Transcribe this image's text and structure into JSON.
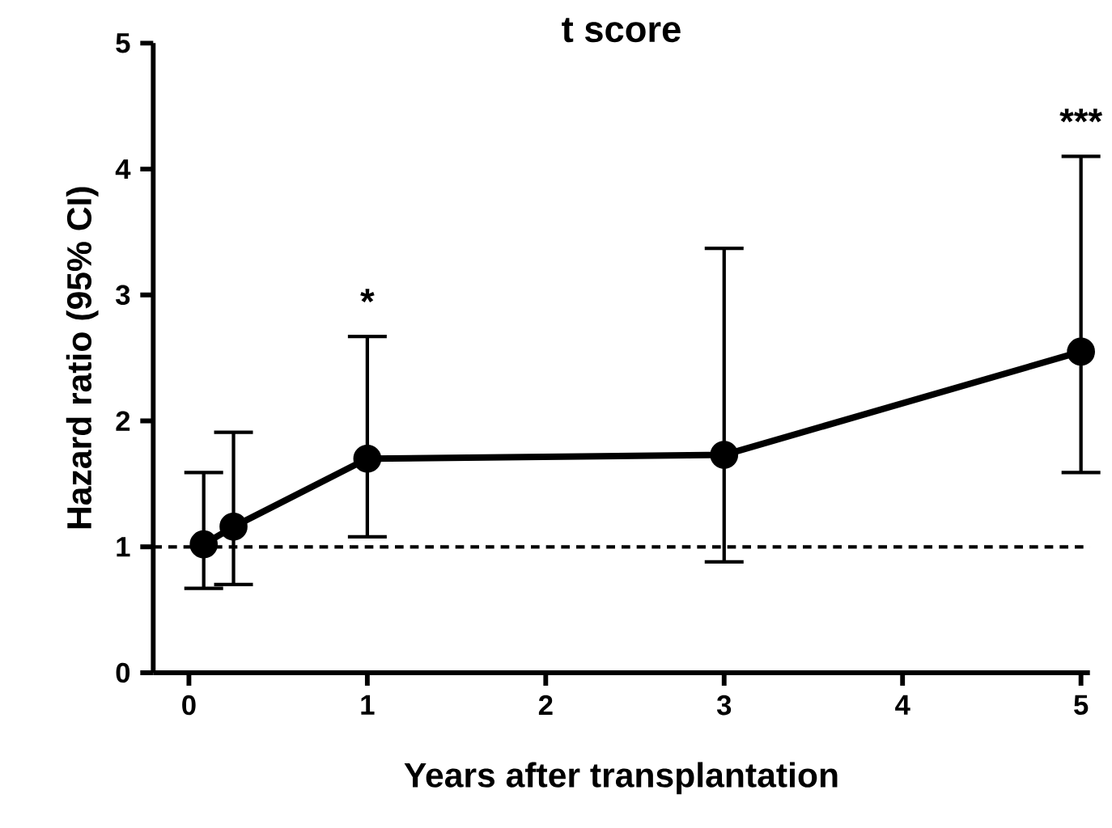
{
  "chart_data": {
    "type": "line",
    "title": "t score",
    "xlabel": "Years after transplantation",
    "ylabel": "Hazard ratio (95% CI)",
    "x": [
      0.083,
      0.25,
      1,
      3,
      5
    ],
    "series": [
      {
        "color": "#000000",
        "values": [
          1.02,
          1.16,
          1.7,
          1.73,
          2.55
        ],
        "errors": [
          [
            0.67,
            1.59
          ],
          [
            0.7,
            1.91
          ],
          [
            1.08,
            2.67
          ],
          [
            0.88,
            3.37
          ],
          [
            1.59,
            4.1
          ]
        ]
      }
    ],
    "xlim": [
      -0.2,
      5.05
    ],
    "xticks": [
      0,
      1,
      2,
      3,
      4,
      5
    ],
    "ylim": [
      0,
      5
    ],
    "yticks": [
      0,
      1,
      2,
      3,
      4,
      5
    ],
    "marker": "circle",
    "line_style": "solid",
    "grid": false,
    "ref_lines": [
      {
        "axis": "y",
        "value": 1,
        "line_style": "dashed",
        "color": "#000000"
      }
    ],
    "annotations": [
      {
        "text": "*",
        "x": 1,
        "y": 2.67
      },
      {
        "text": "***",
        "x": 5,
        "y": 4.1
      }
    ]
  }
}
